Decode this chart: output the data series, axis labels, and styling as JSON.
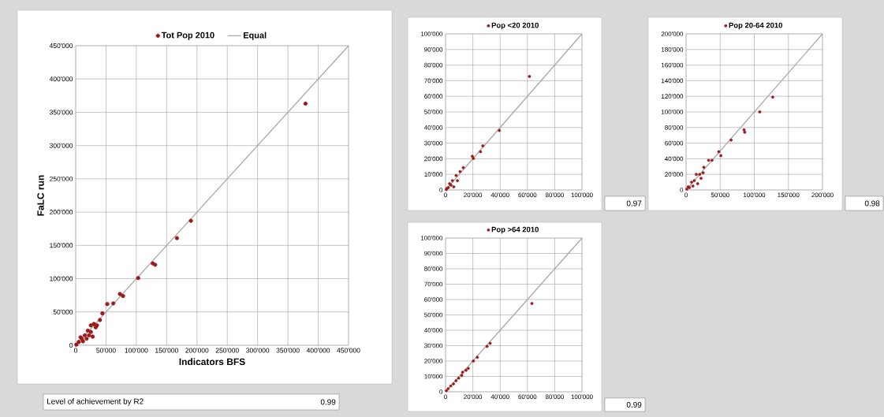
{
  "chart_data": [
    {
      "type": "scatter",
      "xlabel": "Indicators BFS",
      "ylabel": "FaLC run",
      "grid": true,
      "legend": "top",
      "xlim": [
        0,
        450000
      ],
      "ylim": [
        0,
        450000
      ],
      "xticks": [
        0,
        {
          "value": 50000,
          "label": "50'000"
        },
        {
          "value": 100000,
          "label": "100'000"
        },
        {
          "value": 150000,
          "label": "150'000"
        },
        {
          "value": 200000,
          "label": "200'000"
        },
        {
          "value": 250000,
          "label": "250'000"
        },
        {
          "value": 300000,
          "label": "300'000"
        },
        {
          "value": 350000,
          "label": "350'000"
        },
        {
          "value": 400000,
          "label": "400'000"
        },
        {
          "value": 450000,
          "label": "450'000"
        }
      ],
      "yticks": [
        0,
        {
          "value": 50000,
          "label": "50'000"
        },
        {
          "value": 100000,
          "label": "100'000"
        },
        {
          "value": 150000,
          "label": "150'000"
        },
        {
          "value": 200000,
          "label": "200'000"
        },
        {
          "value": 250000,
          "label": "250'000"
        },
        {
          "value": 300000,
          "label": "300'000"
        },
        {
          "value": 350000,
          "label": "350'000"
        },
        {
          "value": 400000,
          "label": "400'000"
        },
        {
          "value": 450000,
          "label": "450'000"
        }
      ],
      "series": [
        {
          "name": "Tot Pop 2010",
          "marker": "circle",
          "color": "#9b1b1b",
          "x": [
            379000,
            190000,
            167000,
            127000,
            131000,
            103000,
            73000,
            78000,
            52000,
            62000,
            44000,
            40000,
            35000,
            30000,
            33000,
            25000,
            28000,
            25000,
            20000,
            22000,
            18000,
            15000,
            12000,
            10000,
            8000,
            5000,
            2000,
            1000
          ],
          "values": [
            363000,
            187000,
            161000,
            123000,
            121000,
            101000,
            77000,
            74000,
            62000,
            63000,
            48000,
            38000,
            30000,
            32000,
            27000,
            30000,
            13000,
            20000,
            22000,
            15000,
            10000,
            15000,
            6000,
            10000,
            12000,
            5000,
            null,
            1000
          ]
        },
        {
          "name": "Equal",
          "type": "line",
          "marker": "none",
          "color": "#a6a6a6",
          "x": [
            0,
            450000
          ],
          "values": [
            0,
            450000
          ]
        }
      ],
      "annotations": [
        "Level of achievement by R2",
        "0.99"
      ]
    },
    {
      "type": "scatter",
      "grid": true,
      "legend": "top",
      "xlim": [
        0,
        100000
      ],
      "ylim": [
        0,
        100000
      ],
      "xticks": [
        0,
        {
          "value": 20000,
          "label": "20'000"
        },
        {
          "value": 40000,
          "label": "40'000"
        },
        {
          "value": 60000,
          "label": "60'000"
        },
        {
          "value": 80000,
          "label": "80'000"
        },
        {
          "value": 100000,
          "label": "100'000"
        }
      ],
      "yticks": [
        0,
        {
          "value": 10000,
          "label": "10'000"
        },
        {
          "value": 20000,
          "label": "20'000"
        },
        {
          "value": 30000,
          "label": "30'000"
        },
        {
          "value": 40000,
          "label": "40'000"
        },
        {
          "value": 50000,
          "label": "50'000"
        },
        {
          "value": 60000,
          "label": "60'000"
        },
        {
          "value": 70000,
          "label": "70'000"
        },
        {
          "value": 80000,
          "label": "80'000"
        },
        {
          "value": 90000,
          "label": "90'000"
        },
        {
          "value": 100000,
          "label": "100'000"
        }
      ],
      "series": [
        {
          "name": "Pop <20 2010",
          "marker": "circle",
          "color": "#9b1b1b",
          "x": [
            61500,
            39400,
            27300,
            25600,
            19600,
            20400,
            13000,
            10600,
            7700,
            8700,
            5000,
            4000,
            3000,
            2000,
            1000,
            6000,
            500
          ],
          "values": [
            72700,
            38100,
            28300,
            24500,
            21600,
            20200,
            14300,
            11800,
            9300,
            5900,
            6000,
            3000,
            4000,
            1500,
            1000,
            2000,
            300
          ]
        },
        {
          "type": "line",
          "marker": "none",
          "color": "#a6a6a6",
          "x": [
            0,
            100000
          ],
          "values": [
            0,
            100000
          ]
        }
      ],
      "annotations": [
        "0.97"
      ]
    },
    {
      "type": "scatter",
      "grid": true,
      "legend": "top",
      "xlim": [
        0,
        200000
      ],
      "ylim": [
        0,
        200000
      ],
      "xticks": [
        0,
        {
          "value": 50000,
          "label": "50'000"
        },
        {
          "value": 100000,
          "label": "100'000"
        },
        {
          "value": 150000,
          "label": "150'000"
        },
        {
          "value": 200000,
          "label": "200'000"
        }
      ],
      "yticks": [
        0,
        {
          "value": 20000,
          "label": "20'000"
        },
        {
          "value": 40000,
          "label": "40'000"
        },
        {
          "value": 60000,
          "label": "60'000"
        },
        {
          "value": 80000,
          "label": "80'000"
        },
        {
          "value": 100000,
          "label": "100'000"
        },
        {
          "value": 120000,
          "label": "120'000"
        },
        {
          "value": 140000,
          "label": "140'000"
        },
        {
          "value": 160000,
          "label": "160'000"
        },
        {
          "value": 180000,
          "label": "180'000"
        },
        {
          "value": 200000,
          "label": "200'000"
        }
      ],
      "series": [
        {
          "name": "Pop 20-64 2010",
          "marker": "circle",
          "color": "#9b1b1b",
          "x": [
            127000,
            108000,
            85000,
            86000,
            66000,
            48000,
            51000,
            33000,
            38000,
            26000,
            20000,
            25000,
            15000,
            22000,
            17000,
            12000,
            10000,
            8000,
            5000,
            3000,
            1000
          ],
          "values": [
            119000,
            100000,
            77000,
            74000,
            64000,
            49000,
            44000,
            38000,
            38000,
            29000,
            20000,
            22000,
            20000,
            15000,
            8000,
            12000,
            5000,
            10000,
            3000,
            4000,
            1000
          ]
        },
        {
          "type": "line",
          "marker": "none",
          "color": "#a6a6a6",
          "x": [
            0,
            200000
          ],
          "values": [
            0,
            200000
          ]
        }
      ],
      "annotations": [
        "0.98"
      ]
    },
    {
      "type": "scatter",
      "grid": true,
      "legend": "top",
      "xlim": [
        0,
        100000
      ],
      "ylim": [
        0,
        100000
      ],
      "xticks": [
        0,
        {
          "value": 20000,
          "label": "20'000"
        },
        {
          "value": 40000,
          "label": "40'000"
        },
        {
          "value": 60000,
          "label": "60'000"
        },
        {
          "value": 80000,
          "label": "80'000"
        },
        {
          "value": 100000,
          "label": "100'000"
        }
      ],
      "yticks": [
        0,
        {
          "value": 10000,
          "label": "10'000"
        },
        {
          "value": 20000,
          "label": "20'000"
        },
        {
          "value": 30000,
          "label": "30'000"
        },
        {
          "value": 40000,
          "label": "40'000"
        },
        {
          "value": 50000,
          "label": "50'000"
        },
        {
          "value": 60000,
          "label": "60'000"
        },
        {
          "value": 70000,
          "label": "70'000"
        },
        {
          "value": 80000,
          "label": "80'000"
        },
        {
          "value": 90000,
          "label": "90'000"
        },
        {
          "value": 100000,
          "label": "100'000"
        }
      ],
      "series": [
        {
          "name": "Pop >64 2010",
          "marker": "circle",
          "color": "#9b1b1b",
          "x": [
            63300,
            32700,
            30400,
            23300,
            20400,
            16700,
            15000,
            12500,
            11900,
            9600,
            7700,
            5800,
            3800,
            1900,
            600
          ],
          "values": [
            57400,
            31500,
            29500,
            22400,
            20000,
            15200,
            14000,
            12700,
            10600,
            8900,
            7200,
            5100,
            3800,
            2000,
            700
          ]
        },
        {
          "type": "line",
          "marker": "none",
          "color": "#a6a6a6",
          "x": [
            0,
            100000
          ],
          "values": [
            0,
            100000
          ]
        }
      ],
      "annotations": [
        "0.99"
      ]
    }
  ]
}
